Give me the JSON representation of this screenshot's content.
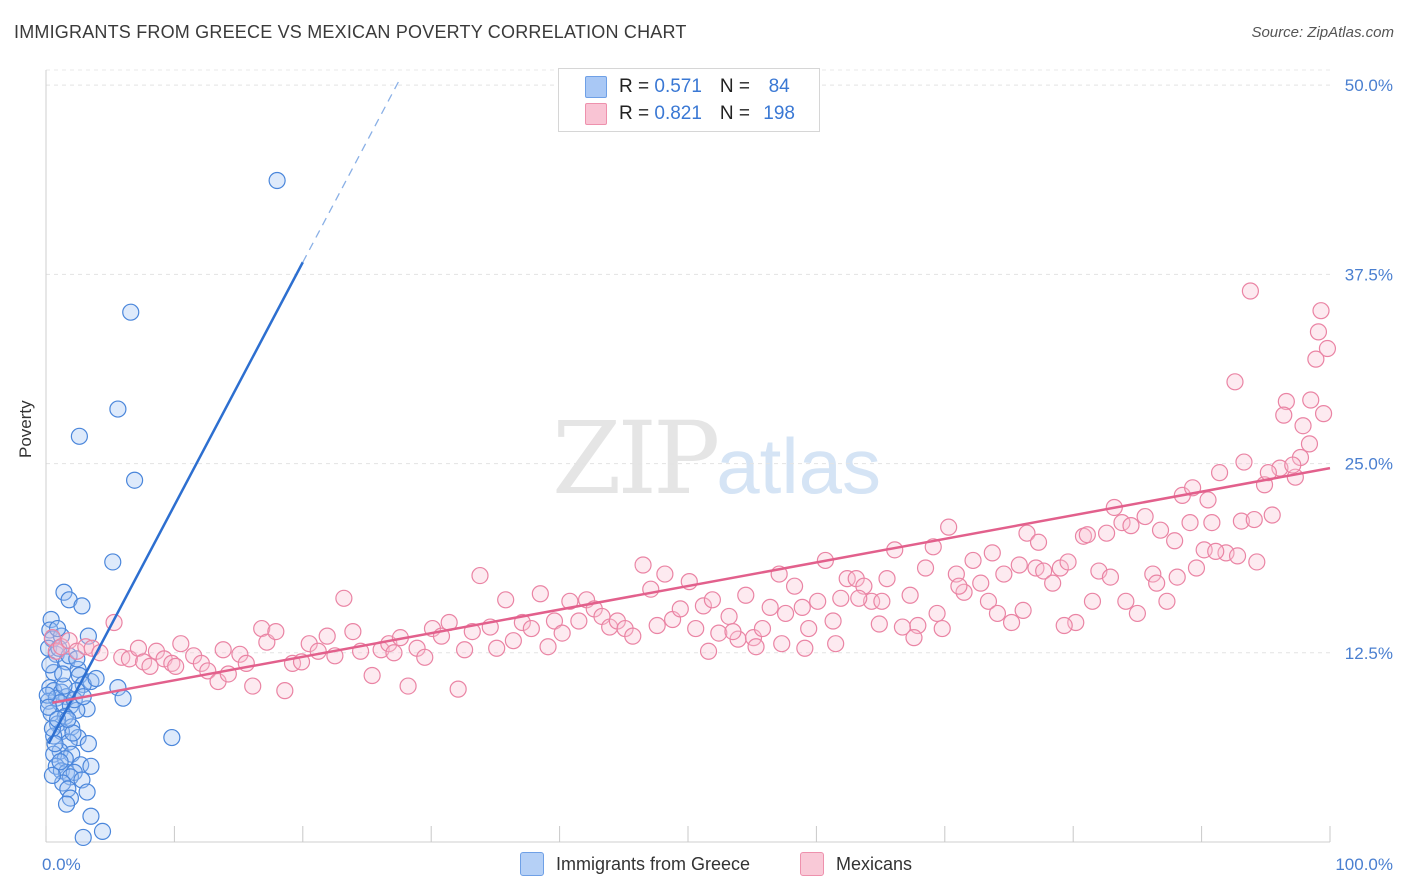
{
  "title": "IMMIGRANTS FROM GREECE VS MEXICAN POVERTY CORRELATION CHART",
  "source": "Source: ZipAtlas.com",
  "watermark": {
    "part1": "ZIP",
    "part2": "atlas"
  },
  "legend_top": {
    "rows": [
      {
        "r_label": "R = ",
        "r_value": "0.571",
        "n_label": "N = ",
        "n_value": " 84",
        "color": "#a9c8f5",
        "border": "#6fa0e6"
      },
      {
        "r_label": "R = ",
        "r_value": "0.821",
        "n_label": "N = ",
        "n_value": "198",
        "color": "#f9c4d4",
        "border": "#ee91ad"
      }
    ]
  },
  "legend_bottom": [
    {
      "label": "Immigrants from Greece",
      "color": "#b5d0f6",
      "border": "#6fa0e6"
    },
    {
      "label": "Mexicans",
      "color": "#f9c9d7",
      "border": "#ee91ad"
    }
  ],
  "chart_data": {
    "type": "scatter",
    "title": "IMMIGRANTS FROM GREECE VS MEXICAN POVERTY CORRELATION CHART",
    "xlabel": "",
    "ylabel": "Poverty",
    "xlim": [
      0,
      100
    ],
    "ylim": [
      0,
      51
    ],
    "x_tick_labels": [
      {
        "value": 0,
        "label": "0.0%"
      },
      {
        "value": 100,
        "label": "100.0%"
      }
    ],
    "y_ticks": [
      {
        "value": 12.5,
        "label": "12.5%"
      },
      {
        "value": 25.0,
        "label": "25.0%"
      },
      {
        "value": 37.5,
        "label": "37.5%"
      },
      {
        "value": 50.0,
        "label": "50.0%"
      }
    ],
    "grid": true,
    "series": [
      {
        "name": "Immigrants from Greece",
        "color": "#4a86db",
        "fill": "rgba(160,195,243,0.35)",
        "trend": {
          "x": [
            0.2,
            20
          ],
          "y": [
            6.5,
            38.3
          ],
          "dashed_to": {
            "x": 27.5,
            "y": 50.3
          },
          "color": "#2d6fd0"
        },
        "points": [
          [
            18,
            43.7
          ],
          [
            6.6,
            35
          ],
          [
            5.6,
            28.6
          ],
          [
            2.6,
            26.8
          ],
          [
            6.9,
            23.9
          ],
          [
            5.2,
            18.5
          ],
          [
            1.4,
            16.5
          ],
          [
            1.8,
            16
          ],
          [
            2.8,
            15.6
          ],
          [
            0.4,
            14.7
          ],
          [
            0.3,
            14
          ],
          [
            0.5,
            13.4
          ],
          [
            1.2,
            13.6
          ],
          [
            3.3,
            13.6
          ],
          [
            0.2,
            12.8
          ],
          [
            0.8,
            12.4
          ],
          [
            1.6,
            11.9
          ],
          [
            2.5,
            11.4
          ],
          [
            0.6,
            11.2
          ],
          [
            2.6,
            11
          ],
          [
            3.5,
            10.6
          ],
          [
            2.9,
            10.4
          ],
          [
            5.6,
            10.2
          ],
          [
            0.3,
            10.2
          ],
          [
            0.6,
            10
          ],
          [
            1.2,
            9.9
          ],
          [
            2.4,
            10
          ],
          [
            1.6,
            9.6
          ],
          [
            0.2,
            9.3
          ],
          [
            0.8,
            9.5
          ],
          [
            1.1,
            9.2
          ],
          [
            1.9,
            9
          ],
          [
            3.2,
            8.8
          ],
          [
            2.4,
            8.7
          ],
          [
            6,
            9.5
          ],
          [
            0.4,
            8.5
          ],
          [
            1.5,
            8.3
          ],
          [
            0.9,
            7.8
          ],
          [
            2,
            7.6
          ],
          [
            1.2,
            7.3
          ],
          [
            0.6,
            7
          ],
          [
            2.5,
            6.9
          ],
          [
            1.8,
            6.6
          ],
          [
            9.8,
            6.9
          ],
          [
            3.3,
            6.5
          ],
          [
            1.1,
            6
          ],
          [
            0.6,
            5.8
          ],
          [
            2,
            5.8
          ],
          [
            1.5,
            5.5
          ],
          [
            2.7,
            5.1
          ],
          [
            0.8,
            5
          ],
          [
            1.2,
            4.7
          ],
          [
            1.6,
            4.6
          ],
          [
            2.2,
            4.6
          ],
          [
            3.5,
            5
          ],
          [
            1.9,
            4.3
          ],
          [
            2.8,
            4.1
          ],
          [
            1.3,
            3.9
          ],
          [
            1.7,
            3.5
          ],
          [
            3.2,
            3.3
          ],
          [
            1.9,
            2.9
          ],
          [
            1.6,
            2.5
          ],
          [
            3.5,
            1.7
          ],
          [
            4.4,
            0.7
          ],
          [
            2.9,
            0.3
          ],
          [
            0.1,
            9.7
          ],
          [
            0.2,
            8.9
          ],
          [
            0.5,
            7.5
          ],
          [
            0.9,
            8.1
          ],
          [
            1.4,
            10.3
          ],
          [
            0.7,
            6.5
          ],
          [
            2.2,
            9.4
          ],
          [
            1,
            12.8
          ],
          [
            0.3,
            11.7
          ],
          [
            1.8,
            12.3
          ],
          [
            2.1,
            7.2
          ],
          [
            1.1,
            5.3
          ],
          [
            0.5,
            4.4
          ],
          [
            2.4,
            12.1
          ],
          [
            3.9,
            10.8
          ],
          [
            1.3,
            11.1
          ],
          [
            0.9,
            14.1
          ],
          [
            2.9,
            9.6
          ],
          [
            1.7,
            8.1
          ]
        ]
      },
      {
        "name": "Mexicans",
        "color": "#ea84a4",
        "fill": "rgba(248,195,212,0.35)",
        "trend": {
          "x": [
            0.5,
            100
          ],
          "y": [
            9.2,
            24.7
          ],
          "color": "#e2608c"
        },
        "points": [
          [
            0.5,
            13.5
          ],
          [
            0.8,
            12.6
          ],
          [
            1.2,
            12.9
          ],
          [
            1.8,
            13.3
          ],
          [
            2.4,
            12.6
          ],
          [
            3.1,
            12.9
          ],
          [
            3.6,
            12.8
          ],
          [
            4.2,
            12.5
          ],
          [
            5.3,
            14.5
          ],
          [
            5.9,
            12.2
          ],
          [
            6.5,
            12.1
          ],
          [
            7.2,
            12.8
          ],
          [
            7.6,
            11.9
          ],
          [
            8.1,
            11.6
          ],
          [
            8.6,
            12.6
          ],
          [
            9.2,
            12.1
          ],
          [
            9.8,
            11.8
          ],
          [
            10.1,
            11.6
          ],
          [
            10.5,
            13.1
          ],
          [
            11.5,
            12.3
          ],
          [
            12.1,
            11.8
          ],
          [
            12.6,
            11.3
          ],
          [
            13.4,
            10.6
          ],
          [
            13.8,
            12.7
          ],
          [
            14.2,
            11.1
          ],
          [
            15.1,
            12.4
          ],
          [
            15.6,
            11.8
          ],
          [
            16.1,
            10.3
          ],
          [
            16.8,
            14.1
          ],
          [
            17.2,
            13.2
          ],
          [
            17.9,
            13.9
          ],
          [
            18.6,
            10
          ],
          [
            19.2,
            11.8
          ],
          [
            19.9,
            11.9
          ],
          [
            20.5,
            13.1
          ],
          [
            21.2,
            12.6
          ],
          [
            21.9,
            13.6
          ],
          [
            22.5,
            12.3
          ],
          [
            23.2,
            16.1
          ],
          [
            23.9,
            13.9
          ],
          [
            24.5,
            12.6
          ],
          [
            25.4,
            11
          ],
          [
            26.1,
            12.7
          ],
          [
            26.7,
            13.1
          ],
          [
            27.1,
            12.5
          ],
          [
            27.6,
            13.5
          ],
          [
            28.2,
            10.3
          ],
          [
            28.9,
            12.8
          ],
          [
            29.5,
            12.2
          ],
          [
            30.1,
            14.1
          ],
          [
            30.8,
            13.6
          ],
          [
            31.4,
            14.5
          ],
          [
            32.1,
            10.1
          ],
          [
            32.6,
            12.7
          ],
          [
            33.2,
            13.9
          ],
          [
            33.8,
            17.6
          ],
          [
            34.6,
            14.2
          ],
          [
            35.1,
            12.8
          ],
          [
            35.8,
            16
          ],
          [
            36.4,
            13.3
          ],
          [
            37.1,
            14.5
          ],
          [
            37.8,
            14.1
          ],
          [
            38.5,
            16.4
          ],
          [
            39.1,
            12.9
          ],
          [
            39.6,
            14.6
          ],
          [
            40.2,
            13.8
          ],
          [
            40.8,
            15.9
          ],
          [
            41.5,
            14.6
          ],
          [
            42.1,
            16
          ],
          [
            42.7,
            15.4
          ],
          [
            43.3,
            14.9
          ],
          [
            43.9,
            14.2
          ],
          [
            44.5,
            14.6
          ],
          [
            45.1,
            14.1
          ],
          [
            45.7,
            13.6
          ],
          [
            46.5,
            18.3
          ],
          [
            47.1,
            16.7
          ],
          [
            47.6,
            14.3
          ],
          [
            48.2,
            17.7
          ],
          [
            48.8,
            14.7
          ],
          [
            49.4,
            15.4
          ],
          [
            50.1,
            17.2
          ],
          [
            50.6,
            14.1
          ],
          [
            51.2,
            15.6
          ],
          [
            51.9,
            16
          ],
          [
            52.4,
            13.8
          ],
          [
            53.2,
            14.9
          ],
          [
            53.9,
            13.4
          ],
          [
            54.5,
            16.3
          ],
          [
            55.1,
            13.5
          ],
          [
            55.8,
            14.1
          ],
          [
            56.4,
            15.5
          ],
          [
            57.1,
            17.7
          ],
          [
            57.6,
            15.1
          ],
          [
            58.3,
            16.9
          ],
          [
            58.9,
            15.5
          ],
          [
            59.4,
            14.1
          ],
          [
            60.1,
            15.9
          ],
          [
            60.7,
            18.6
          ],
          [
            61.3,
            14.6
          ],
          [
            61.9,
            16.1
          ],
          [
            62.4,
            17.4
          ],
          [
            63.1,
            17.4
          ],
          [
            63.7,
            16.9
          ],
          [
            64.3,
            15.9
          ],
          [
            64.9,
            14.4
          ],
          [
            65.5,
            17.4
          ],
          [
            66.1,
            19.3
          ],
          [
            66.7,
            14.2
          ],
          [
            67.3,
            16.3
          ],
          [
            67.9,
            14.3
          ],
          [
            68.5,
            18.1
          ],
          [
            69.1,
            19.5
          ],
          [
            69.8,
            14.1
          ],
          [
            70.3,
            20.8
          ],
          [
            70.9,
            17.7
          ],
          [
            71.5,
            16.5
          ],
          [
            72.2,
            18.6
          ],
          [
            72.8,
            17.1
          ],
          [
            73.4,
            15.9
          ],
          [
            74.1,
            15.1
          ],
          [
            74.6,
            17.7
          ],
          [
            75.2,
            14.5
          ],
          [
            75.8,
            18.3
          ],
          [
            76.4,
            20.4
          ],
          [
            77.1,
            18.1
          ],
          [
            77.7,
            17.9
          ],
          [
            78.4,
            17.1
          ],
          [
            79,
            18.1
          ],
          [
            79.6,
            18.5
          ],
          [
            80.2,
            14.5
          ],
          [
            80.8,
            20.2
          ],
          [
            81.5,
            15.9
          ],
          [
            82,
            17.9
          ],
          [
            82.6,
            20.4
          ],
          [
            83.2,
            22.1
          ],
          [
            83.8,
            21.1
          ],
          [
            84.5,
            20.9
          ],
          [
            85,
            15.1
          ],
          [
            85.6,
            21.5
          ],
          [
            86.2,
            17.7
          ],
          [
            86.8,
            20.6
          ],
          [
            87.3,
            15.9
          ],
          [
            87.9,
            19.9
          ],
          [
            88.5,
            22.9
          ],
          [
            89.1,
            21.1
          ],
          [
            89.6,
            18.1
          ],
          [
            90.2,
            19.3
          ],
          [
            90.8,
            21.1
          ],
          [
            91.4,
            24.4
          ],
          [
            91.9,
            19.1
          ],
          [
            92.6,
            30.4
          ],
          [
            93.1,
            21.2
          ],
          [
            93.8,
            36.4
          ],
          [
            94.3,
            18.5
          ],
          [
            94.9,
            23.6
          ],
          [
            95.5,
            21.6
          ],
          [
            96.1,
            24.7
          ],
          [
            96.6,
            29.1
          ],
          [
            97.3,
            24.1
          ],
          [
            97.9,
            27.5
          ],
          [
            98.4,
            26.3
          ],
          [
            99.1,
            33.7
          ],
          [
            99.5,
            28.3
          ],
          [
            93.3,
            25.1
          ],
          [
            95.2,
            24.4
          ],
          [
            96.4,
            28.2
          ],
          [
            97.7,
            25.4
          ],
          [
            98.5,
            29.2
          ],
          [
            99.3,
            35.1
          ],
          [
            99.8,
            32.6
          ],
          [
            98.9,
            31.9
          ],
          [
            97.1,
            24.9
          ],
          [
            94.1,
            21.3
          ],
          [
            92.8,
            18.9
          ],
          [
            91.1,
            19.2
          ],
          [
            90.5,
            22.6
          ],
          [
            89.3,
            23.4
          ],
          [
            88.1,
            17.5
          ],
          [
            86.5,
            17.1
          ],
          [
            84.1,
            15.9
          ],
          [
            82.9,
            17.5
          ],
          [
            81.1,
            20.3
          ],
          [
            79.3,
            14.3
          ],
          [
            77.3,
            19.8
          ],
          [
            76.1,
            15.3
          ],
          [
            73.7,
            19.1
          ],
          [
            71.1,
            16.9
          ],
          [
            69.4,
            15.1
          ],
          [
            67.6,
            13.5
          ],
          [
            65.1,
            15.9
          ],
          [
            63.3,
            16.1
          ],
          [
            61.5,
            13.1
          ],
          [
            59.1,
            12.8
          ],
          [
            57.3,
            13.1
          ],
          [
            55.3,
            12.9
          ],
          [
            53.5,
            13.9
          ],
          [
            51.6,
            12.6
          ]
        ]
      }
    ]
  }
}
